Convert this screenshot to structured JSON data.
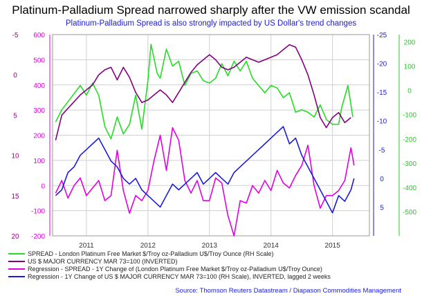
{
  "chart_data": {
    "type": "line",
    "title": "Platinum-Palladium Spread narrowed sharply after the VW emission scandal",
    "subtitle": "Platinum-Palladium Spread is also strongly impacted by US Dollar's trend changes",
    "source": "Source: Thomson Reuters Datastream / Diapason Commodities Management",
    "x_range": [
      2010.45,
      2015.6
    ],
    "x_ticks": [
      "2011",
      "2012",
      "2013",
      "2014",
      "2015"
    ],
    "x_tick_values": [
      2011,
      2012,
      2013,
      2014,
      2015
    ],
    "grid": true,
    "axes": {
      "far_left": {
        "color": "#9a0080",
        "range": [
          20,
          -5
        ],
        "ticks": [
          "-5",
          "0",
          "5",
          "10",
          "15",
          "20"
        ],
        "tick_values": [
          -5,
          0,
          5,
          10,
          15,
          20
        ]
      },
      "left": {
        "color": "#e000e0",
        "range": [
          -200,
          600
        ],
        "ticks": [
          "600",
          "500",
          "400",
          "300",
          "200",
          "100",
          "0",
          "-100",
          "-200"
        ],
        "tick_values": [
          600,
          500,
          400,
          300,
          200,
          100,
          0,
          -100,
          -200
        ]
      },
      "right": {
        "color": "#1a1adc",
        "range": [
          10,
          -25
        ],
        "ticks": [
          "-25",
          "-20",
          "-15",
          "-10",
          "-5",
          "0",
          "5"
        ],
        "tick_values": [
          -25,
          -20,
          -15,
          -10,
          -5,
          0,
          5
        ]
      },
      "far_right": {
        "color": "#22cc22",
        "range": [
          -600,
          230
        ],
        "ticks": [
          "200",
          "100",
          "0",
          "-100",
          "-200",
          "-300",
          "-400",
          "-500"
        ],
        "tick_values": [
          200,
          100,
          0,
          -100,
          -200,
          -300,
          -400,
          -500
        ]
      }
    },
    "series": [
      {
        "name": "SPREAD - London Platinum Free Market $/Troy oz-Palladium U$/Troy Ounce (RH Scale)",
        "color": "#22dd22",
        "axis": "far_right",
        "x": [
          2010.5,
          2010.6,
          2010.75,
          2010.9,
          2011.0,
          2011.1,
          2011.2,
          2011.3,
          2011.4,
          2011.5,
          2011.6,
          2011.7,
          2011.8,
          2011.9,
          2012.0,
          2012.05,
          2012.15,
          2012.2,
          2012.3,
          2012.4,
          2012.5,
          2012.6,
          2012.7,
          2012.8,
          2012.9,
          2013.0,
          2013.1,
          2013.2,
          2013.3,
          2013.4,
          2013.5,
          2013.6,
          2013.7,
          2013.8,
          2013.9,
          2014.0,
          2014.1,
          2014.2,
          2014.3,
          2014.4,
          2014.5,
          2014.6,
          2014.7,
          2014.8,
          2014.9,
          2015.0,
          2015.1,
          2015.15,
          2015.25,
          2015.3,
          2015.33
        ],
        "y": [
          -130,
          -80,
          -30,
          20,
          -20,
          30,
          -20,
          -150,
          -200,
          -110,
          -180,
          -140,
          -20,
          -160,
          40,
          190,
          70,
          50,
          170,
          100,
          120,
          20,
          70,
          80,
          40,
          30,
          50,
          110,
          60,
          120,
          80,
          120,
          50,
          20,
          -10,
          20,
          10,
          -30,
          -10,
          -90,
          -80,
          -90,
          -110,
          -60,
          -120,
          -140,
          -140,
          -70,
          20,
          -60,
          -110
        ]
      },
      {
        "name": "US $ MAJOR CURRENCY MAR 73=100 (INVERTED)",
        "color": "#800080",
        "axis": "left",
        "x": [
          2010.5,
          2010.6,
          2010.75,
          2010.9,
          2011.0,
          2011.1,
          2011.2,
          2011.3,
          2011.4,
          2011.5,
          2011.6,
          2011.7,
          2011.8,
          2011.9,
          2012.0,
          2012.1,
          2012.2,
          2012.3,
          2012.4,
          2012.5,
          2012.6,
          2012.7,
          2012.8,
          2012.9,
          2013.0,
          2013.1,
          2013.2,
          2013.3,
          2013.4,
          2013.5,
          2013.6,
          2013.7,
          2013.8,
          2013.9,
          2014.0,
          2014.1,
          2014.2,
          2014.3,
          2014.4,
          2014.5,
          2014.6,
          2014.7,
          2014.8,
          2014.9,
          2015.0,
          2015.1,
          2015.2,
          2015.3
        ],
        "y": [
          180,
          280,
          320,
          360,
          380,
          400,
          440,
          460,
          470,
          420,
          470,
          430,
          370,
          330,
          340,
          360,
          380,
          360,
          330,
          370,
          410,
          450,
          480,
          500,
          520,
          500,
          470,
          460,
          470,
          490,
          510,
          500,
          490,
          500,
          510,
          520,
          540,
          560,
          550,
          500,
          440,
          360,
          270,
          230,
          270,
          290,
          250,
          270
        ]
      },
      {
        "name": "Regression - SPREAD - 1Y Change of (London Platinum Free Market $/Troy oz-Palladium U$/Troy Ounce)",
        "color": "#e000e0",
        "axis": "left",
        "x": [
          2010.5,
          2010.6,
          2010.7,
          2010.8,
          2010.9,
          2011.0,
          2011.1,
          2011.2,
          2011.3,
          2011.4,
          2011.5,
          2011.6,
          2011.7,
          2011.8,
          2011.9,
          2012.0,
          2012.1,
          2012.2,
          2012.3,
          2012.4,
          2012.5,
          2012.6,
          2012.7,
          2012.8,
          2012.9,
          2013.0,
          2013.1,
          2013.2,
          2013.3,
          2013.4,
          2013.5,
          2013.6,
          2013.7,
          2013.8,
          2013.9,
          2014.0,
          2014.1,
          2014.2,
          2014.3,
          2014.4,
          2014.5,
          2014.6,
          2014.7,
          2014.8,
          2014.9,
          2015.0,
          2015.1,
          2015.2,
          2015.3,
          2015.35
        ],
        "y": [
          -30,
          20,
          -50,
          0,
          30,
          -40,
          -10,
          20,
          -60,
          -40,
          140,
          -20,
          -110,
          -40,
          -60,
          -20,
          100,
          200,
          60,
          230,
          180,
          20,
          -30,
          20,
          -60,
          -60,
          30,
          10,
          -120,
          -200,
          -60,
          -70,
          0,
          -30,
          20,
          -20,
          60,
          10,
          -10,
          40,
          80,
          160,
          0,
          -90,
          -40,
          -40,
          -20,
          20,
          150,
          80
        ]
      },
      {
        "name": "Regression - 1Y Change of US $ MAJOR CURRENCY MAR 73=100 (RH Scale), INVERTED, lagged 2 weeks",
        "color": "#1a1adc",
        "axis": "right",
        "x": [
          2010.5,
          2010.6,
          2010.7,
          2010.8,
          2010.9,
          2011.0,
          2011.1,
          2011.2,
          2011.3,
          2011.4,
          2011.5,
          2011.6,
          2011.7,
          2011.8,
          2011.9,
          2012.0,
          2012.1,
          2012.2,
          2012.3,
          2012.4,
          2012.5,
          2012.6,
          2012.7,
          2012.8,
          2012.9,
          2013.0,
          2013.1,
          2013.2,
          2013.3,
          2013.4,
          2013.5,
          2013.6,
          2013.7,
          2013.8,
          2013.9,
          2014.0,
          2014.1,
          2014.2,
          2014.3,
          2014.4,
          2014.5,
          2014.6,
          2014.7,
          2014.8,
          2014.9,
          2015.0,
          2015.1,
          2015.2,
          2015.3,
          2015.35
        ],
        "y": [
          3,
          2,
          -1,
          -2,
          -4,
          -5,
          -6,
          -7,
          -5,
          -3,
          -2,
          0,
          1,
          0,
          2,
          3,
          4,
          5,
          3,
          1,
          2,
          1,
          0,
          -1,
          1,
          0,
          -1,
          0,
          1,
          -1,
          -2,
          -3,
          -4,
          -5,
          -6,
          -7,
          -8,
          -9,
          -6,
          -7,
          -4,
          -2,
          0,
          2,
          4,
          6,
          3,
          4,
          2,
          0
        ]
      }
    ],
    "legend": {
      "placement": "bottom-left"
    }
  }
}
